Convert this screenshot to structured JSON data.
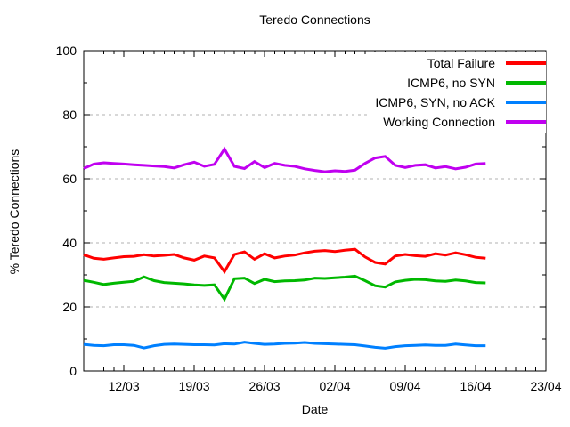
{
  "window": {
    "background": "#ffffff",
    "foreground": "#000000"
  },
  "chart_data": {
    "type": "line",
    "title": "Teredo Connections",
    "xlabel": "Date",
    "ylabel": "% Teredo Connections",
    "ylim": [
      0,
      100
    ],
    "yticks": [
      0,
      20,
      40,
      60,
      80,
      100
    ],
    "ytick_minor_step": 10,
    "grid": {
      "horizontal_dashed_at": [
        20,
        40,
        60,
        80
      ],
      "color": "#b0b0b0",
      "vertical": false
    },
    "x_axis": {
      "tick_labels": [
        "12/03",
        "19/03",
        "26/03",
        "02/04",
        "09/04",
        "16/04",
        "23/04"
      ],
      "tick_day_positions": [
        4,
        11,
        18,
        25,
        32,
        39,
        46
      ],
      "total_days_span": 46,
      "minor_tick_every_days": 1
    },
    "legend_position": "top-right-inside",
    "dates": [
      "08/03",
      "09/03",
      "10/03",
      "11/03",
      "12/03",
      "13/03",
      "14/03",
      "15/03",
      "16/03",
      "17/03",
      "18/03",
      "19/03",
      "20/03",
      "21/03",
      "22/03",
      "23/03",
      "24/03",
      "25/03",
      "26/03",
      "27/03",
      "28/03",
      "29/03",
      "30/03",
      "31/03",
      "01/04",
      "02/04",
      "03/04",
      "04/04",
      "05/04",
      "06/04",
      "07/04",
      "08/04",
      "09/04",
      "10/04",
      "11/04",
      "12/04",
      "13/04",
      "14/04",
      "15/04",
      "16/04",
      "17/04"
    ],
    "series": [
      {
        "name": "Total Failure",
        "color": "#ff0000",
        "values": [
          36.3,
          35.2,
          34.9,
          35.3,
          35.7,
          35.8,
          36.3,
          35.9,
          36.1,
          36.4,
          35.3,
          34.6,
          35.9,
          35.3,
          31.0,
          36.4,
          37.2,
          34.9,
          36.6,
          35.3,
          35.9,
          36.2,
          36.9,
          37.4,
          37.6,
          37.3,
          37.7,
          38.0,
          35.6,
          33.9,
          33.4,
          35.9,
          36.4,
          36.0,
          35.8,
          36.6,
          36.2,
          36.9,
          36.3,
          35.5,
          35.2
        ]
      },
      {
        "name": "ICMP6, no SYN",
        "color": "#00b800",
        "values": [
          28.3,
          27.7,
          27.0,
          27.4,
          27.7,
          28.0,
          29.4,
          28.2,
          27.6,
          27.4,
          27.2,
          26.9,
          26.7,
          26.9,
          22.4,
          28.8,
          29.0,
          27.3,
          28.6,
          27.9,
          28.1,
          28.2,
          28.4,
          29.0,
          28.9,
          29.1,
          29.3,
          29.6,
          28.2,
          26.6,
          26.2,
          27.8,
          28.3,
          28.6,
          28.5,
          28.1,
          28.0,
          28.4,
          28.1,
          27.6,
          27.5
        ]
      },
      {
        "name": "ICMP6, SYN, no ACK",
        "color": "#0080ff",
        "values": [
          8.3,
          8.0,
          7.9,
          8.2,
          8.2,
          8.0,
          7.2,
          7.9,
          8.3,
          8.4,
          8.3,
          8.2,
          8.2,
          8.1,
          8.5,
          8.4,
          9.0,
          8.6,
          8.3,
          8.4,
          8.6,
          8.7,
          8.9,
          8.6,
          8.5,
          8.4,
          8.3,
          8.2,
          7.8,
          7.4,
          7.1,
          7.6,
          7.9,
          8.0,
          8.1,
          8.0,
          8.0,
          8.4,
          8.1,
          7.9,
          7.9
        ]
      },
      {
        "name": "Working Connection",
        "color": "#c000f0",
        "values": [
          63.2,
          64.6,
          65.0,
          64.8,
          64.6,
          64.4,
          64.2,
          64.0,
          63.8,
          63.4,
          64.4,
          65.2,
          63.9,
          64.5,
          69.3,
          63.9,
          63.2,
          65.4,
          63.5,
          64.8,
          64.2,
          63.9,
          63.1,
          62.6,
          62.2,
          62.5,
          62.3,
          62.7,
          64.8,
          66.5,
          67.0,
          64.2,
          63.5,
          64.2,
          64.4,
          63.4,
          63.8,
          63.1,
          63.6,
          64.6,
          64.8
        ]
      }
    ]
  }
}
